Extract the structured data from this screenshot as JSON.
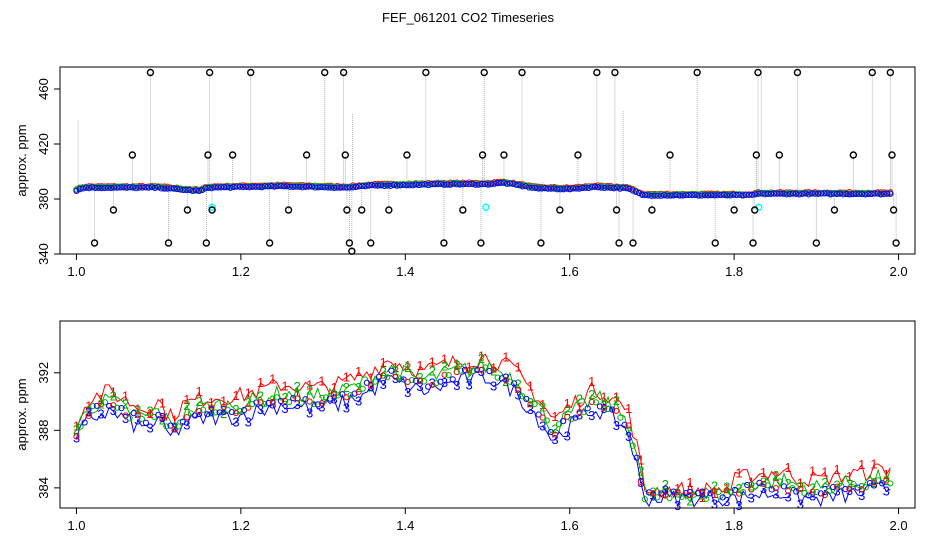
{
  "title": "FEF_061201  CO2 Timeseries",
  "chart_data": [
    {
      "type": "scatter",
      "title": "",
      "xlabel": "",
      "ylabel": "approx. ppm",
      "xlim": [
        0.98,
        2.02
      ],
      "ylim": [
        340,
        476
      ],
      "xticks": [
        "1.0",
        "1.2",
        "1.4",
        "1.6",
        "1.8",
        "2.0"
      ],
      "xtick_values": [
        1.0,
        1.2,
        1.4,
        1.6,
        1.8,
        2.0
      ],
      "yticks": [
        "340",
        "380",
        "420",
        "460"
      ],
      "ytick_values": [
        340,
        380,
        420,
        460
      ],
      "colors": {
        "red": "#ff0000",
        "green": "#00c000",
        "blue": "#0000ff",
        "cyan": "#00ffff",
        "gray": "#a0a0a0",
        "black": "#000000"
      },
      "baseline": [
        [
          1.0,
          386.5
        ],
        [
          1.01,
          388.5
        ],
        [
          1.05,
          388.5
        ],
        [
          1.1,
          388.5
        ],
        [
          1.15,
          386
        ],
        [
          1.16,
          388.5
        ],
        [
          1.25,
          389.5
        ],
        [
          1.33,
          388.5
        ],
        [
          1.36,
          390
        ],
        [
          1.45,
          391
        ],
        [
          1.49,
          391
        ],
        [
          1.5,
          391
        ],
        [
          1.52,
          392
        ],
        [
          1.56,
          388
        ],
        [
          1.6,
          387.5
        ],
        [
          1.63,
          389
        ],
        [
          1.67,
          388
        ],
        [
          1.69,
          383
        ],
        [
          1.82,
          383
        ],
        [
          1.83,
          384
        ],
        [
          1.99,
          384
        ]
      ],
      "outliers_black": [
        {
          "x": 1.022,
          "y": 348
        },
        {
          "x": 1.045,
          "y": 372
        },
        {
          "x": 1.068,
          "y": 412
        },
        {
          "x": 1.09,
          "y": 472
        },
        {
          "x": 1.112,
          "y": 348
        },
        {
          "x": 1.135,
          "y": 372
        },
        {
          "x": 1.158,
          "y": 348
        },
        {
          "x": 1.16,
          "y": 412
        },
        {
          "x": 1.162,
          "y": 472
        },
        {
          "x": 1.165,
          "y": 372
        },
        {
          "x": 1.19,
          "y": 412
        },
        {
          "x": 1.212,
          "y": 472
        },
        {
          "x": 1.235,
          "y": 348
        },
        {
          "x": 1.258,
          "y": 372
        },
        {
          "x": 1.28,
          "y": 412
        },
        {
          "x": 1.302,
          "y": 472
        },
        {
          "x": 1.325,
          "y": 472
        },
        {
          "x": 1.327,
          "y": 412
        },
        {
          "x": 1.329,
          "y": 372
        },
        {
          "x": 1.332,
          "y": 348
        },
        {
          "x": 1.335,
          "y": 342
        },
        {
          "x": 1.347,
          "y": 372
        },
        {
          "x": 1.358,
          "y": 348
        },
        {
          "x": 1.38,
          "y": 372
        },
        {
          "x": 1.402,
          "y": 412
        },
        {
          "x": 1.425,
          "y": 472
        },
        {
          "x": 1.447,
          "y": 348
        },
        {
          "x": 1.47,
          "y": 372
        },
        {
          "x": 1.492,
          "y": 348
        },
        {
          "x": 1.494,
          "y": 412
        },
        {
          "x": 1.496,
          "y": 472
        },
        {
          "x": 1.52,
          "y": 412
        },
        {
          "x": 1.542,
          "y": 472
        },
        {
          "x": 1.565,
          "y": 348
        },
        {
          "x": 1.588,
          "y": 372
        },
        {
          "x": 1.61,
          "y": 412
        },
        {
          "x": 1.633,
          "y": 472
        },
        {
          "x": 1.655,
          "y": 472
        },
        {
          "x": 1.657,
          "y": 372
        },
        {
          "x": 1.66,
          "y": 348
        },
        {
          "x": 1.677,
          "y": 348
        },
        {
          "x": 1.7,
          "y": 372
        },
        {
          "x": 1.722,
          "y": 412
        },
        {
          "x": 1.755,
          "y": 472
        },
        {
          "x": 1.777,
          "y": 348
        },
        {
          "x": 1.8,
          "y": 372
        },
        {
          "x": 1.823,
          "y": 348
        },
        {
          "x": 1.825,
          "y": 372
        },
        {
          "x": 1.827,
          "y": 412
        },
        {
          "x": 1.829,
          "y": 472
        },
        {
          "x": 1.855,
          "y": 412
        },
        {
          "x": 1.877,
          "y": 472
        },
        {
          "x": 1.9,
          "y": 348
        },
        {
          "x": 1.922,
          "y": 372
        },
        {
          "x": 1.945,
          "y": 412
        },
        {
          "x": 1.968,
          "y": 472
        },
        {
          "x": 1.99,
          "y": 472
        },
        {
          "x": 1.992,
          "y": 412
        },
        {
          "x": 1.994,
          "y": 372
        },
        {
          "x": 1.997,
          "y": 348
        }
      ],
      "outliers_cyan": [
        {
          "x": 1.165,
          "y": 374
        },
        {
          "x": 1.498,
          "y": 374
        },
        {
          "x": 1.83,
          "y": 374
        }
      ],
      "spikes": [
        {
          "x": 1.002,
          "y": 438
        },
        {
          "x": 1.336,
          "y": 442
        },
        {
          "x": 1.665,
          "y": 444
        },
        {
          "x": 1.833,
          "y": 476
        }
      ]
    },
    {
      "type": "line",
      "title": "",
      "xlabel": "",
      "ylabel": "approx. ppm",
      "xlim": [
        0.98,
        2.02
      ],
      "ylim": [
        382.6,
        395.6
      ],
      "xticks": [
        "1.0",
        "1.2",
        "1.4",
        "1.6",
        "1.8",
        "2.0"
      ],
      "xtick_values": [
        1.0,
        1.2,
        1.4,
        1.6,
        1.8,
        2.0
      ],
      "yticks": [
        "384",
        "388",
        "392"
      ],
      "ytick_values": [
        384,
        388,
        392
      ],
      "colors": {
        "1": "#ff0000",
        "2": "#00b000",
        "3": "#0000ff"
      },
      "x_range": [
        1.0,
        1.99
      ],
      "n_points": 200,
      "series": [
        {
          "label": "1",
          "offset": 0.9
        },
        {
          "label": "2",
          "offset": 0.3
        },
        {
          "label": "3",
          "offset": -0.5
        }
      ],
      "baseline": [
        [
          1.0,
          387.8
        ],
        [
          1.015,
          389.3
        ],
        [
          1.04,
          389.8
        ],
        [
          1.06,
          389.2
        ],
        [
          1.08,
          388.6
        ],
        [
          1.1,
          389.1
        ],
        [
          1.115,
          388.0
        ],
        [
          1.13,
          388.9
        ],
        [
          1.16,
          389.4
        ],
        [
          1.2,
          389.5
        ],
        [
          1.25,
          390.3
        ],
        [
          1.29,
          390.0
        ],
        [
          1.32,
          390.3
        ],
        [
          1.35,
          391.0
        ],
        [
          1.38,
          392.0
        ],
        [
          1.42,
          391.2
        ],
        [
          1.46,
          391.8
        ],
        [
          1.5,
          392.2
        ],
        [
          1.53,
          391.4
        ],
        [
          1.56,
          389.5
        ],
        [
          1.58,
          387.8
        ],
        [
          1.6,
          388.8
        ],
        [
          1.63,
          390.0
        ],
        [
          1.65,
          389.5
        ],
        [
          1.67,
          388.5
        ],
        [
          1.68,
          386.5
        ],
        [
          1.69,
          383.5
        ],
        [
          1.72,
          383.5
        ],
        [
          1.78,
          383.5
        ],
        [
          1.8,
          383.6
        ],
        [
          1.82,
          384.0
        ],
        [
          1.86,
          384.2
        ],
        [
          1.88,
          383.8
        ],
        [
          1.9,
          383.7
        ],
        [
          1.95,
          384.1
        ],
        [
          1.99,
          384.5
        ]
      ]
    }
  ]
}
